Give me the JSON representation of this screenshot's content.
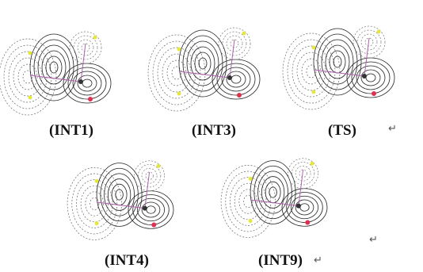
{
  "figure": {
    "panels": [
      {
        "label": "(INT1)"
      },
      {
        "label": "(INT3)"
      },
      {
        "label": "(TS)"
      },
      {
        "label": "(INT4)"
      },
      {
        "label": "(INT9)"
      }
    ],
    "paragraph_marks": [
      "↵",
      "↵",
      "↵"
    ]
  }
}
